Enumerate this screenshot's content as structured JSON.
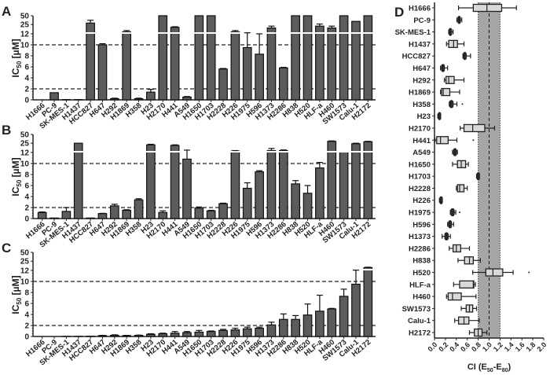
{
  "colors": {
    "bar": "#5c5c5c",
    "box": "#d9d9d9",
    "band": "#a6a6a6",
    "axis": "#222222"
  },
  "chart_data": [
    {
      "panel": "A",
      "type": "bar",
      "ylabel": {
        "main": "IC",
        "sub": "50",
        "unit": " [µM]"
      },
      "yticks": [
        0,
        2,
        4,
        6,
        8,
        10,
        12,
        25,
        50
      ],
      "ylim": [
        0,
        50
      ],
      "y_axis_break": 12,
      "reference_lines": [
        2,
        10
      ],
      "categories": [
        "H1666",
        "PC-9",
        "SK-MES-1",
        "H1437",
        "HCC827",
        "H647",
        "H292",
        "H1869",
        "H358",
        "H23",
        "H2170",
        "H441",
        "A549",
        "H1650",
        "H1703",
        "H2228",
        "H226",
        "H1975",
        "H596",
        "H1373",
        "H2286",
        "H838",
        "H520",
        "HLF-a",
        "H460",
        "SW1573",
        "Calu-1",
        "H2172"
      ],
      "values": [
        0,
        1.3,
        0.05,
        0.05,
        28,
        10,
        0.2,
        14,
        0.2,
        1.4,
        50,
        20,
        0.5,
        50,
        50,
        5.6,
        14,
        9.5,
        8.3,
        19,
        5.8,
        50,
        50,
        22,
        19,
        50,
        32,
        50
      ],
      "errors": [
        0,
        0,
        0,
        0,
        7,
        0.2,
        0.1,
        1.5,
        0.1,
        0.5,
        0,
        1,
        0.1,
        0,
        0,
        0.1,
        1.5,
        3.5,
        3.7,
        3,
        0.1,
        0,
        0,
        4,
        3,
        0,
        0,
        0
      ]
    },
    {
      "panel": "B",
      "type": "bar",
      "ylabel": {
        "main": "IC",
        "sub": "50",
        "unit": " [µM]"
      },
      "yticks": [
        0,
        2,
        4,
        6,
        8,
        10,
        12,
        25,
        50
      ],
      "ylim": [
        0,
        50
      ],
      "y_axis_break": 12,
      "reference_lines": [
        2,
        10
      ],
      "categories": [
        "H1666",
        "PC-9",
        "SK-MES-1",
        "H1437",
        "HCC827",
        "H647",
        "H292",
        "H1869",
        "H358",
        "H23",
        "H2170",
        "H441",
        "A549",
        "H1650",
        "H1703",
        "H2228",
        "H226",
        "H1975",
        "H596",
        "H1373",
        "H2286",
        "H838",
        "H520",
        "HLF-a",
        "H460",
        "SW1573",
        "Calu-1",
        "H2172"
      ],
      "values": [
        1.1,
        0.1,
        1.3,
        25,
        0.1,
        0.9,
        2.3,
        1.5,
        3.4,
        22,
        1.1,
        21,
        10.8,
        1.9,
        1.4,
        2.7,
        13.5,
        5.5,
        8.5,
        14,
        14,
        6.3,
        4.6,
        9.2,
        29,
        13,
        24,
        28
      ],
      "errors": [
        0.1,
        0,
        0.7,
        0,
        0,
        0.05,
        0.3,
        0.1,
        0.2,
        1,
        0.3,
        1,
        3.7,
        0.2,
        0.1,
        0.1,
        0.5,
        1,
        0.2,
        2.5,
        0.7,
        0.6,
        1.4,
        1,
        1,
        0,
        1,
        1
      ]
    },
    {
      "panel": "C",
      "type": "bar",
      "ylabel": {
        "main": "IC",
        "sub": "50",
        "unit": " [µM]"
      },
      "yticks": [
        0,
        2,
        4,
        6,
        8,
        10,
        12,
        25,
        50
      ],
      "ylim": [
        0,
        50
      ],
      "y_axis_break": 12,
      "reference_lines": [
        2,
        10
      ],
      "categories": [
        "H1666",
        "PC-9",
        "SK-MES-1",
        "H1437",
        "HCC827",
        "H647",
        "H292",
        "H1869",
        "H358",
        "H23",
        "H2170",
        "H441",
        "A549",
        "H1650",
        "H1703",
        "H2228",
        "H226",
        "H1975",
        "H596",
        "H1373",
        "H2286",
        "H838",
        "H520",
        "HLF-a",
        "H460",
        "SW1573",
        "Calu-1",
        "H2172"
      ],
      "values": [
        0,
        0,
        0.02,
        0.03,
        0.05,
        0.15,
        0.2,
        0.15,
        0.2,
        0.4,
        0.5,
        0.6,
        0.7,
        0.8,
        0.9,
        1.1,
        1.2,
        1.4,
        1.5,
        2.1,
        3.1,
        3.1,
        3.9,
        4.6,
        5.0,
        7.3,
        9.5,
        15
      ],
      "errors": [
        0,
        0,
        0,
        0,
        0,
        0.05,
        0.1,
        0.05,
        0.05,
        0.1,
        0.1,
        0.3,
        0.2,
        0.3,
        0.1,
        0.2,
        0.3,
        0.3,
        0.2,
        0.5,
        1.0,
        0.7,
        2.0,
        2.9,
        0.1,
        1.3,
        2.8,
        0.5
      ]
    },
    {
      "panel": "D",
      "type": "boxplot",
      "xlabel": {
        "main": "CI (E",
        "sub1": "50",
        "mid": "-E",
        "sub2": "80",
        "end": ")"
      },
      "xlim": [
        0,
        2.0
      ],
      "xticks": [
        "0.0",
        "0.2",
        "0.4",
        "0.6",
        "0.8",
        "1.0",
        "1.2",
        "1.4",
        "1.6",
        "1.8",
        "2.0"
      ],
      "reference_band": [
        0.8,
        1.2
      ],
      "reference_line": 1.0,
      "categories": [
        "H1666",
        "PC-9",
        "SK-MES-1",
        "H1437",
        "HCC827",
        "H647",
        "H292",
        "H1869",
        "H358",
        "H23",
        "H2170",
        "H441",
        "A549",
        "H1650",
        "H1703",
        "H2228",
        "H226",
        "H1975",
        "H596",
        "H1373",
        "H2286",
        "H838",
        "H520",
        "HLF-a",
        "H460",
        "SW1573",
        "Calu-1",
        "H2172"
      ],
      "boxes": [
        [
          0.44,
          0.71,
          0.96,
          1.23,
          1.5
        ],
        [
          0.41,
          0.43,
          0.45,
          0.47,
          0.5
        ],
        [
          0.26,
          0.27,
          0.29,
          0.31,
          0.34
        ],
        [
          0.22,
          0.26,
          0.35,
          0.42,
          0.54
        ],
        [
          0.52,
          0.53,
          0.55,
          0.58,
          0.66
        ],
        [
          0.11,
          0.13,
          0.15,
          0.18,
          0.24
        ],
        [
          0.18,
          0.21,
          0.26,
          0.36,
          0.54
        ],
        [
          0.11,
          0.13,
          0.16,
          0.28,
          0.46
        ],
        [
          0.27,
          0.28,
          0.3,
          0.34,
          0.41
        ],
        [
          0.06,
          0.07,
          0.08,
          0.09,
          0.1
        ],
        [
          0.47,
          0.54,
          0.7,
          0.92,
          1.1
        ],
        [
          0.01,
          0.04,
          0.11,
          0.25,
          0.41
        ],
        [
          0.33,
          0.35,
          0.37,
          0.4,
          0.42
        ],
        [
          0.33,
          0.42,
          0.49,
          0.57,
          0.62
        ],
        [
          0.77,
          0.78,
          0.79,
          0.8,
          0.82
        ],
        [
          0.4,
          0.42,
          0.46,
          0.54,
          0.6
        ],
        [
          0.09,
          0.1,
          0.11,
          0.12,
          0.13
        ],
        [
          0.29,
          0.3,
          0.33,
          0.36,
          0.39
        ],
        [
          0.24,
          0.26,
          0.28,
          0.31,
          0.35
        ],
        [
          0.14,
          0.19,
          0.22,
          0.25,
          0.29
        ],
        [
          0.27,
          0.34,
          0.4,
          0.48,
          0.64
        ],
        [
          0.43,
          0.55,
          0.64,
          0.71,
          0.84
        ],
        [
          0.7,
          0.94,
          1.07,
          1.25,
          1.44
        ],
        [
          0.35,
          0.46,
          0.71,
          0.72,
          0.75
        ],
        [
          0.22,
          0.25,
          0.33,
          0.49,
          0.76
        ],
        [
          0.49,
          0.58,
          0.64,
          0.7,
          0.77
        ],
        [
          0.37,
          0.44,
          0.54,
          0.63,
          0.82
        ],
        [
          0.64,
          0.73,
          0.8,
          0.87,
          0.96
        ]
      ],
      "outliers": {
        "H358": [
          0.51
        ],
        "H441": [
          0.71
        ],
        "H1975": [
          0.46
        ],
        "H520": [
          1.73
        ]
      }
    }
  ]
}
